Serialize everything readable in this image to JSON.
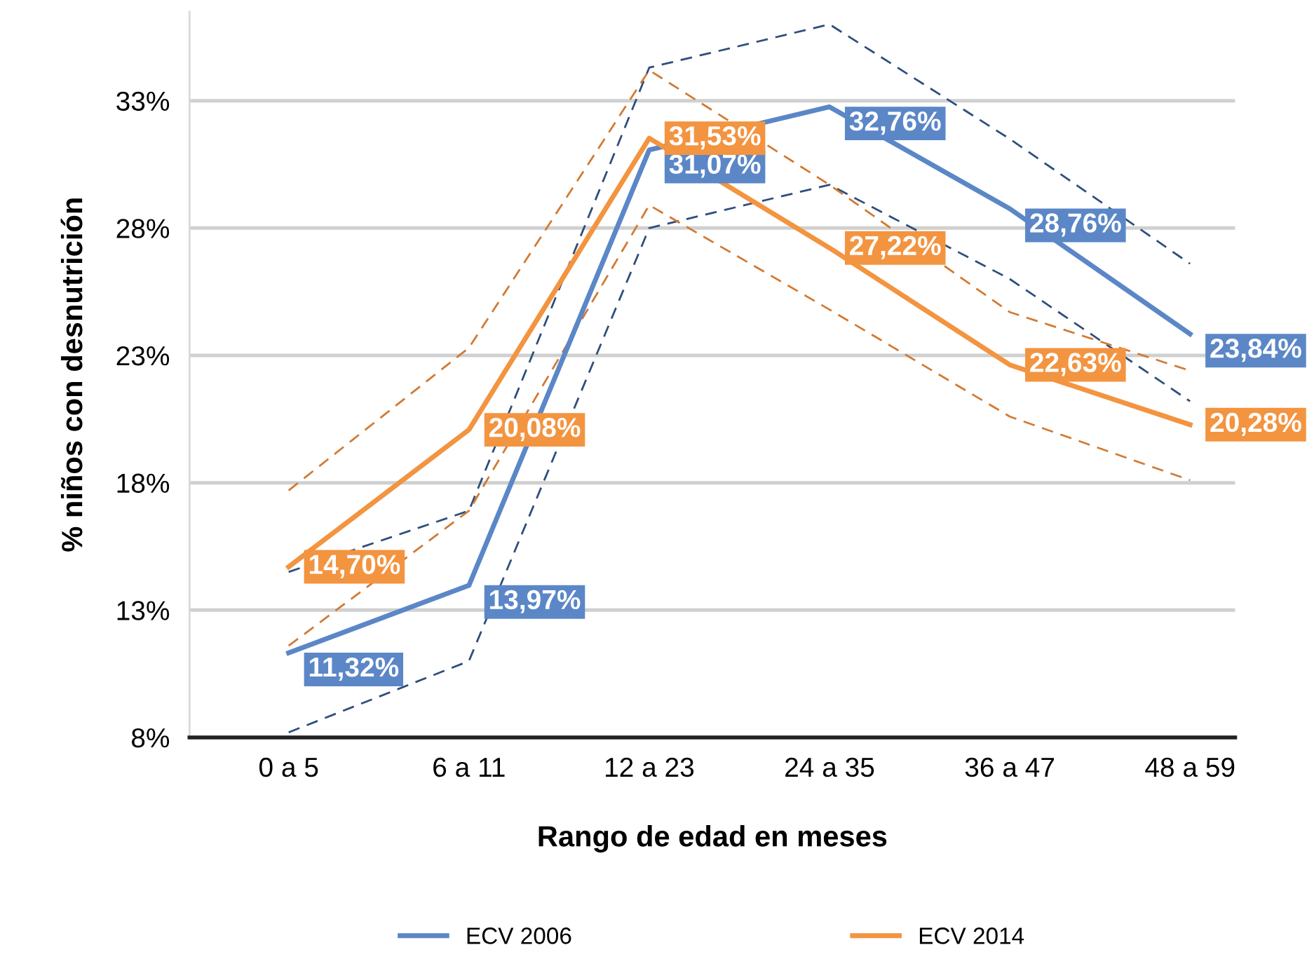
{
  "chart_data": {
    "type": "line",
    "xlabel": "Rango de edad en meses",
    "ylabel": "% niños con desnutrición",
    "categories": [
      "0 a 5",
      "6 a 11",
      "12 a 23",
      "24 a 35",
      "36 a 47",
      "48 a 59"
    ],
    "series": [
      {
        "color": "#2f4e7c",
        "line_style": "dashed",
        "values": [
          8.2,
          11.0,
          28.0,
          29.7,
          26.0,
          21.2
        ]
      },
      {
        "color": "#2f4e7c",
        "line_style": "dashed",
        "values": [
          14.5,
          16.9,
          34.3,
          36.0,
          31.5,
          26.6
        ]
      },
      {
        "color": "#d27a33",
        "line_style": "dashed",
        "values": [
          11.6,
          16.9,
          28.9,
          24.8,
          20.6,
          18.1
        ]
      },
      {
        "color": "#d27a33",
        "line_style": "dashed",
        "values": [
          17.7,
          23.3,
          34.2,
          29.7,
          24.7,
          22.4
        ]
      },
      {
        "name": "ECV 2006",
        "color": "#5b87c7",
        "values": [
          11.32,
          13.97,
          31.07,
          32.76,
          28.76,
          23.84
        ],
        "value_labels": [
          "11,32%",
          "13,97%",
          "31,07%",
          "32,76%",
          "28,76%",
          "23,84%"
        ]
      },
      {
        "name": "ECV 2014",
        "color": "#f39440",
        "values": [
          14.7,
          20.08,
          31.53,
          27.22,
          22.63,
          20.28
        ],
        "value_labels": [
          "14,70%",
          "20,08%",
          "31,53%",
          "27,22%",
          "22,63%",
          "20,28%"
        ]
      }
    ],
    "ylim": [
      8,
      36.5
    ],
    "yticks": [
      {
        "value": 8,
        "label": "8%"
      },
      {
        "value": 13,
        "label": "13%"
      },
      {
        "value": 18,
        "label": "18%"
      },
      {
        "value": 23,
        "label": "23%"
      },
      {
        "value": 28,
        "label": "28%"
      },
      {
        "value": 33,
        "label": "33%"
      }
    ],
    "grid": "y",
    "legend": "bottom",
    "marker": "none",
    "line_style": "solid"
  }
}
